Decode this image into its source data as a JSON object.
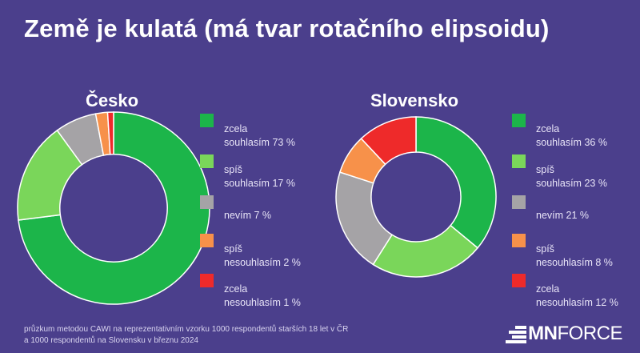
{
  "title": "Země je kulatá (má tvar rotačního elipsoidu)",
  "chart_data": [
    {
      "type": "pie",
      "title": "Česko",
      "categories": [
        "zcela souhlasím",
        "spíš souhlasím",
        "nevím",
        "spíš nesouhlasím",
        "zcela nesouhlasím"
      ],
      "values": [
        73,
        17,
        7,
        2,
        1
      ],
      "unit": "%",
      "colors": [
        "#1cb54a",
        "#7ad65a",
        "#a5a3a6",
        "#f7914a",
        "#ee2a2a"
      ],
      "legend": [
        {
          "line1": "zcela",
          "line2": "souhlasím 73 %"
        },
        {
          "line1": "spíš",
          "line2": "souhlasím 17 %"
        },
        {
          "line1": "",
          "line2": "nevím 7 %"
        },
        {
          "line1": "spíš",
          "line2": "nesouhlasím 2 %"
        },
        {
          "line1": "zcela",
          "line2": "nesouhlasím 1 %"
        }
      ]
    },
    {
      "type": "pie",
      "title": "Slovensko",
      "categories": [
        "zcela souhlasím",
        "spíš souhlasím",
        "nevím",
        "spíš nesouhlasím",
        "zcela nesouhlasím"
      ],
      "values": [
        36,
        23,
        21,
        8,
        12
      ],
      "unit": "%",
      "colors": [
        "#1cb54a",
        "#7ad65a",
        "#a5a3a6",
        "#f7914a",
        "#ee2a2a"
      ],
      "legend": [
        {
          "line1": "zcela",
          "line2": "souhlasím 36 %"
        },
        {
          "line1": "spíš",
          "line2": "souhlasím 23 %"
        },
        {
          "line1": "",
          "line2": "nevím 21 %"
        },
        {
          "line1": "spíš",
          "line2": "nesouhlasím 8 %"
        },
        {
          "line1": "zcela",
          "line2": "nesouhlasím 12 %"
        }
      ]
    }
  ],
  "footnote": {
    "line1": "průzkum metodou CAWI na reprezentativním vzorku 1000 respondentů starších 18 let v ČR",
    "line2": "a 1000 respondentů na Slovensku v březnu 2024"
  },
  "logo": {
    "bold": "MN",
    "light": "FORCE"
  },
  "colors": {
    "background": "#4b3f8c",
    "text": "#ffffff"
  }
}
